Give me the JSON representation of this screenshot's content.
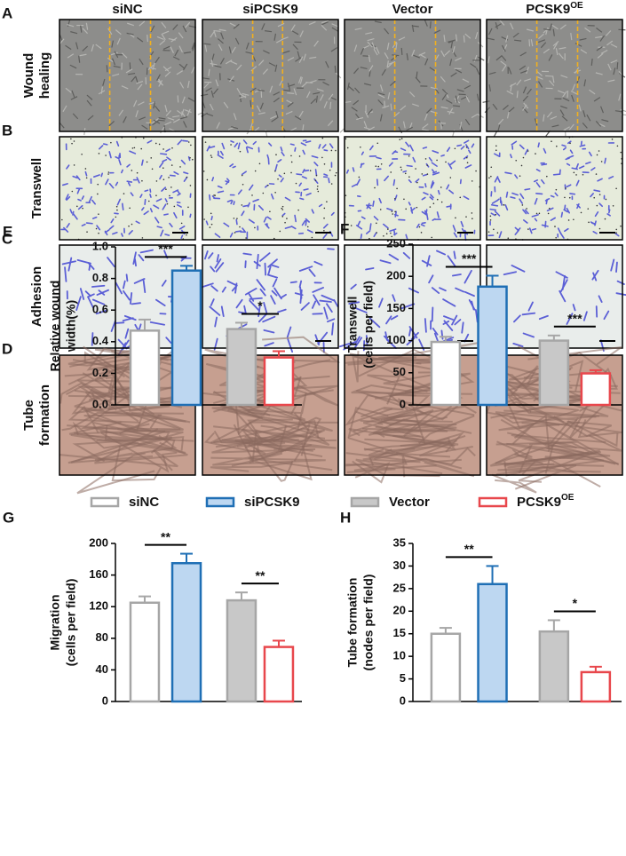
{
  "figure": {
    "panel_letters": [
      "A",
      "B",
      "C",
      "D"
    ],
    "columns": [
      "siNC",
      "siPCSK9",
      "Vector",
      {
        "text": "PCSK9",
        "sup": "OE"
      }
    ],
    "rows": [
      [
        "Wound",
        "healing"
      ],
      [
        "Transwell"
      ],
      [
        "Adhesion"
      ],
      [
        "Tube",
        "formation"
      ]
    ]
  },
  "legend": {
    "series": [
      {
        "name": "siNC",
        "color": "#a6a6a6",
        "fill": "#ffffff"
      },
      {
        "name": "siPCSK9",
        "color": "#1f6fb5",
        "fill": "#bdd7f1"
      },
      {
        "name": "Vector",
        "color": "#a6a6a6",
        "fill": "#c8c8c8"
      },
      {
        "name": "PCSK9",
        "name_sup": "OE",
        "color": "#e8474c",
        "fill": "#ffffff"
      }
    ]
  },
  "chart_data": [
    {
      "type": "bar",
      "panel": "E",
      "ylabel": [
        "Relative wound",
        "width(%)"
      ],
      "values": [
        0.47,
        0.85,
        0.48,
        0.3
      ],
      "errors": [
        0.07,
        0.03,
        0.04,
        0.04
      ],
      "ylim": [
        0,
        1.0
      ],
      "yticks": [
        {
          "value": 0,
          "label": "0.0"
        },
        0.2,
        0.4,
        0.6,
        0.8,
        {
          "value": 1,
          "label": "1.0"
        }
      ],
      "significance": [
        "***",
        "*"
      ]
    },
    {
      "type": "bar",
      "panel": "F",
      "ylabel": [
        "Transwell",
        "(cells per field)"
      ],
      "values": [
        98,
        184,
        100,
        49
      ],
      "errors": [
        8,
        17,
        8,
        5
      ],
      "ylim": [
        0,
        250
      ],
      "yticks": [
        0,
        50,
        100,
        150,
        200,
        250
      ],
      "significance": [
        "***",
        "***"
      ]
    },
    {
      "type": "bar",
      "panel": "G",
      "ylabel": [
        "Migration",
        "(cells per field)"
      ],
      "values": [
        125,
        175,
        128,
        69
      ],
      "errors": [
        8,
        12,
        10,
        8
      ],
      "ylim": [
        0,
        200
      ],
      "yticks": [
        0,
        40,
        80,
        120,
        160,
        200
      ],
      "significance": [
        "**",
        "**"
      ]
    },
    {
      "type": "bar",
      "panel": "H",
      "ylabel": [
        "Tube formation",
        "(nodes per field)"
      ],
      "values": [
        15,
        26,
        15.5,
        6.5
      ],
      "errors": [
        1.3,
        4,
        2.5,
        1.2
      ],
      "ylim": [
        0,
        35
      ],
      "yticks": [
        0,
        5,
        10,
        15,
        20,
        25,
        30,
        35
      ],
      "significance": [
        "**",
        "*"
      ]
    }
  ]
}
